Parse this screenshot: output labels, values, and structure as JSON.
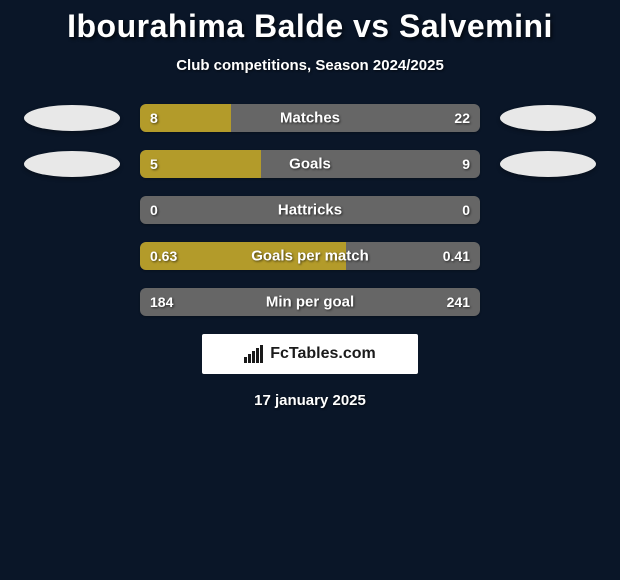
{
  "title": "Ibourahima Balde vs Salvemini",
  "subtitle": "Club competitions, Season 2024/2025",
  "date": "17 january 2025",
  "branding": "FcTables.com",
  "colors": {
    "background": "#0a1628",
    "bar_bg": "#666666",
    "bar_fill": "#b39b2a",
    "ellipse_left": "#e8e8e8",
    "ellipse_right": "#e8e8e8",
    "text": "#ffffff"
  },
  "rows": [
    {
      "label": "Matches",
      "left": "8",
      "right": "22",
      "fill_pct": 26.7,
      "show_ellipses": true
    },
    {
      "label": "Goals",
      "left": "5",
      "right": "9",
      "fill_pct": 35.7,
      "show_ellipses": true
    },
    {
      "label": "Hattricks",
      "left": "0",
      "right": "0",
      "fill_pct": 0,
      "show_ellipses": false
    },
    {
      "label": "Goals per match",
      "left": "0.63",
      "right": "0.41",
      "fill_pct": 60.6,
      "show_ellipses": false
    },
    {
      "label": "Min per goal",
      "left": "184",
      "right": "241",
      "fill_pct": 0,
      "show_ellipses": false
    }
  ]
}
